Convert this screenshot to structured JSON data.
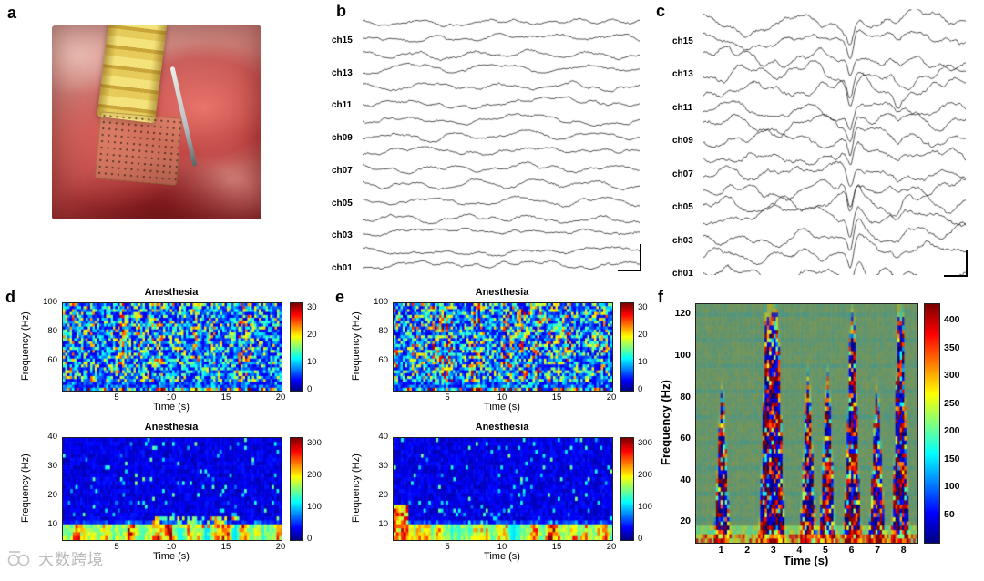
{
  "panels": {
    "a": {
      "label": "a"
    },
    "b": {
      "label": "b"
    },
    "c": {
      "label": "c"
    },
    "d": {
      "label": "d"
    },
    "e": {
      "label": "e"
    },
    "f": {
      "label": "f"
    }
  },
  "watermark": {
    "text": "大数跨境",
    "icon": "circles-logo-icon"
  },
  "chart_data": [
    {
      "id": "b",
      "type": "line",
      "kind": "multichannel_neural_traces",
      "title": "",
      "channel_labels": [
        "ch15",
        "ch13",
        "ch11",
        "ch09",
        "ch07",
        "ch05",
        "ch03",
        "ch01"
      ],
      "n_traces": 16,
      "line_color": "#161616",
      "has_scale_bar": true,
      "synth": {
        "seed": 3,
        "noise": 1.0,
        "walk": 1.1,
        "slow": 3.2,
        "transient": 0,
        "transient_pos": 0,
        "transient2_pos": 0
      }
    },
    {
      "id": "c",
      "type": "line",
      "kind": "multichannel_neural_traces",
      "title": "",
      "channel_labels": [
        "ch15",
        "ch13",
        "ch11",
        "ch09",
        "ch07",
        "ch05",
        "ch03",
        "ch01"
      ],
      "n_traces": 16,
      "line_color": "#161616",
      "has_scale_bar": true,
      "synth": {
        "seed": 9,
        "noise": 1.0,
        "walk": 1.3,
        "slow": 7.5,
        "transient": 1,
        "transient_pos": 0.56,
        "transient2_pos": 0.74
      }
    },
    {
      "id": "d-top",
      "type": "heatmap",
      "title": "Anesthesia",
      "xlabel": "Time (s)",
      "ylabel": "Frequency (Hz)",
      "x_range": [
        0,
        20
      ],
      "x_ticks": [
        5,
        10,
        15,
        20
      ],
      "y_range": [
        40,
        100
      ],
      "y_ticks": [
        60,
        80,
        100
      ],
      "colorbar": {
        "range": [
          0,
          32
        ],
        "ticks": [
          0,
          10,
          20,
          30
        ]
      },
      "pattern": {
        "kind": "speckle",
        "seed": 11,
        "base": 0.1,
        "gain": 0.8,
        "nx": 96,
        "ny": 30
      }
    },
    {
      "id": "d-bottom",
      "type": "heatmap",
      "title": "Anesthesia",
      "xlabel": "Time (s)",
      "ylabel": "Frequency (Hz)",
      "x_range": [
        0,
        20
      ],
      "x_ticks": [
        5,
        10,
        15,
        20
      ],
      "y_range": [
        5,
        40
      ],
      "y_ticks": [
        10,
        20,
        30,
        40
      ],
      "colorbar": {
        "range": [
          0,
          320
        ],
        "ticks": [
          0,
          100,
          200,
          300
        ]
      },
      "pattern": {
        "kind": "lowband",
        "seed": 21,
        "nx": 88,
        "ny": 26,
        "left_hot": false,
        "mid_hot": true
      }
    },
    {
      "id": "e-top",
      "type": "heatmap",
      "title": "Anesthesia",
      "xlabel": "Time (s)",
      "ylabel": "Frequency (Hz)",
      "x_range": [
        0,
        20
      ],
      "x_ticks": [
        5,
        10,
        15,
        20
      ],
      "y_range": [
        40,
        100
      ],
      "y_ticks": [
        60,
        80,
        100
      ],
      "colorbar": {
        "range": [
          0,
          32
        ],
        "ticks": [
          0,
          10,
          20,
          30
        ]
      },
      "pattern": {
        "kind": "speckle",
        "seed": 31,
        "base": 0.1,
        "gain": 0.8,
        "nx": 96,
        "ny": 30
      }
    },
    {
      "id": "e-bottom",
      "type": "heatmap",
      "title": "Anesthesia",
      "xlabel": "Time (s)",
      "ylabel": "Frequency (Hz)",
      "x_range": [
        0,
        20
      ],
      "x_ticks": [
        5,
        10,
        15,
        20
      ],
      "y_range": [
        5,
        40
      ],
      "y_ticks": [
        10,
        20,
        30,
        40
      ],
      "colorbar": {
        "range": [
          0,
          320
        ],
        "ticks": [
          0,
          100,
          200,
          300
        ]
      },
      "pattern": {
        "kind": "lowband",
        "seed": 41,
        "nx": 88,
        "ny": 26,
        "left_hot": true,
        "mid_hot": false
      }
    },
    {
      "id": "f",
      "type": "heatmap",
      "title": "",
      "xlabel": "Time (s)",
      "ylabel": "Frequency (Hz)",
      "x_range": [
        0,
        8.5
      ],
      "x_ticks": [
        1,
        2,
        3,
        4,
        5,
        6,
        7,
        8
      ],
      "y_range": [
        10,
        125
      ],
      "y_ticks": [
        20,
        40,
        60,
        80,
        100,
        120
      ],
      "colorbar": {
        "range": [
          0,
          430
        ],
        "ticks": [
          50,
          100,
          150,
          200,
          250,
          300,
          350,
          400
        ]
      },
      "pattern": {
        "kind": "bursts",
        "seed": 51,
        "base": 0.5,
        "desat": 0.68,
        "nx": 100,
        "ny": 56,
        "burst_times": [
          1.0,
          2.75,
          3.1,
          4.3,
          5.05,
          6.0,
          6.95,
          7.85
        ],
        "burst_strength": [
          0.55,
          0.85,
          0.8,
          0.6,
          0.6,
          0.85,
          0.55,
          0.95
        ],
        "burst_width": 0.16
      }
    }
  ]
}
